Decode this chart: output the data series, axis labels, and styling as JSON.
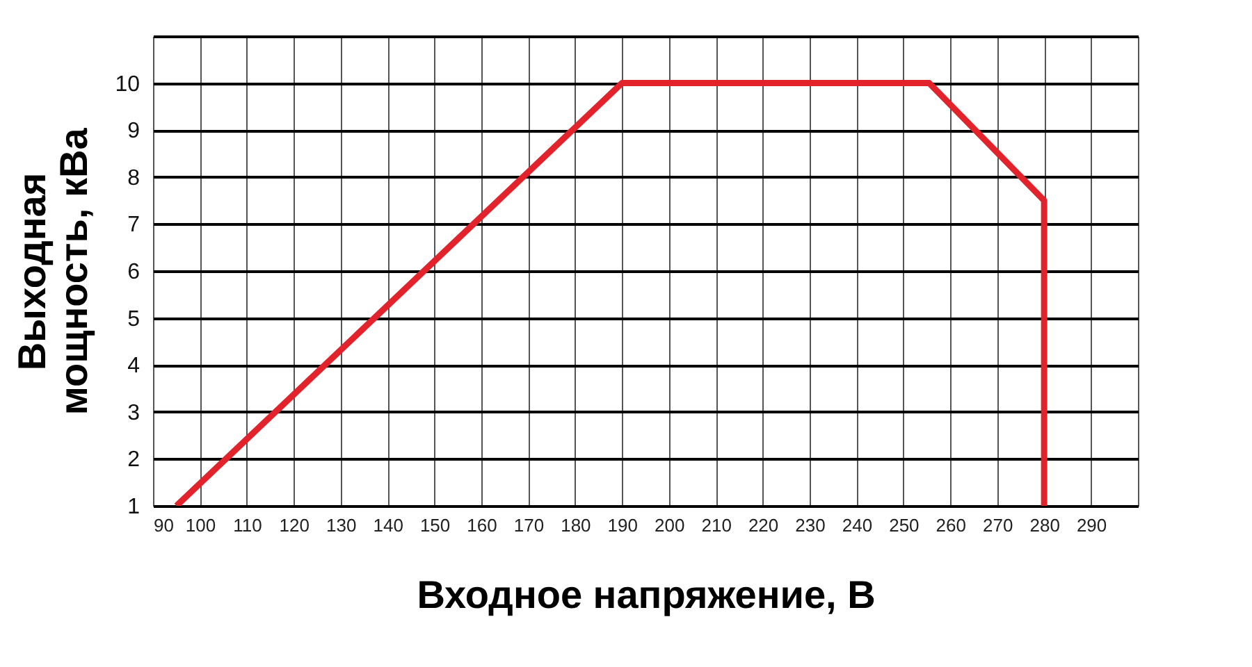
{
  "chart_data": {
    "type": "line",
    "xlabel": "Входное напряжение, В",
    "ylabel": "Выходная\nмощность, кВа",
    "x": [
      95,
      190,
      255.5,
      280,
      280
    ],
    "series": [
      {
        "color": "#e3232b",
        "values": [
          1,
          10,
          10,
          7.5,
          1
        ]
      }
    ],
    "xlim": [
      90,
      300
    ],
    "xticks": [
      90,
      100,
      110,
      120,
      130,
      140,
      150,
      160,
      170,
      180,
      190,
      200,
      210,
      220,
      230,
      240,
      250,
      260,
      270,
      280,
      290,
      {
        "value": 300,
        "label": null
      }
    ],
    "ylim": [
      1,
      11
    ],
    "yticks": [
      1,
      2,
      3,
      4,
      5,
      6,
      7,
      8,
      9,
      10,
      {
        "value": 11,
        "label": null
      }
    ],
    "grid": true,
    "marker": "none",
    "line_style": "solid"
  }
}
